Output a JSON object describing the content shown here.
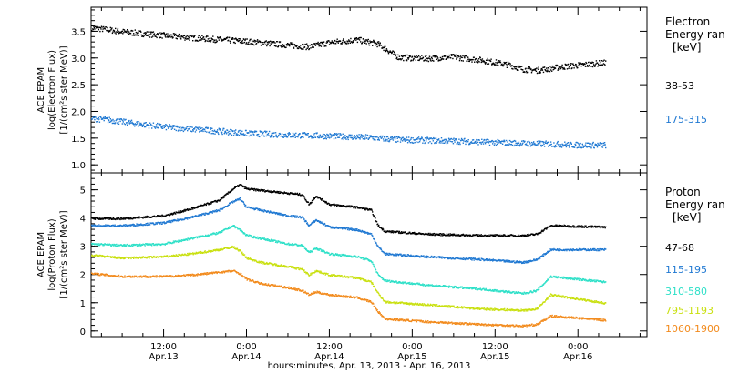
{
  "xlabel": "hours:minutes, Apr. 13, 2013 - Apr. 16, 2013",
  "x_ticks": [
    {
      "time": "12:00",
      "date": "Apr.13",
      "hours": 12
    },
    {
      "time": "0:00",
      "date": "Apr.14",
      "hours": 24
    },
    {
      "time": "12:00",
      "date": "Apr.14",
      "hours": 36
    },
    {
      "time": "0:00",
      "date": "Apr.15",
      "hours": 48
    },
    {
      "time": "12:00",
      "date": "Apr.15",
      "hours": 60
    },
    {
      "time": "0:00",
      "date": "Apr.16",
      "hours": 72
    }
  ],
  "chart_data": [
    {
      "type": "scatter",
      "panel": "electron",
      "ylabel_lines": [
        "ACE EPAM",
        "log(Electron Flux)",
        "[1/(cm²s ster MeV)]"
      ],
      "xlim_hours": [
        1.5,
        82
      ],
      "ylim": [
        0.85,
        3.95
      ],
      "y_ticks": [
        1.0,
        1.5,
        2.0,
        2.5,
        3.0,
        3.5
      ],
      "legend_title": [
        "Electron",
        "Energy ran",
        "[keV]"
      ],
      "series": [
        {
          "name": "38-53",
          "color": "#000000",
          "x_hours": [
            1.5,
            6,
            12,
            18,
            24,
            30,
            33,
            36,
            40,
            43,
            46,
            50,
            54,
            58,
            62,
            64,
            66,
            70,
            74,
            76
          ],
          "y": [
            3.58,
            3.5,
            3.43,
            3.37,
            3.32,
            3.25,
            3.22,
            3.3,
            3.35,
            3.27,
            3.02,
            3.0,
            3.03,
            2.97,
            2.88,
            2.8,
            2.78,
            2.85,
            2.9,
            2.92
          ]
        },
        {
          "name": "175-315",
          "color": "#1f78d2",
          "x_hours": [
            1.5,
            4,
            8,
            12,
            18,
            24,
            30,
            36,
            42,
            46,
            50,
            56,
            62,
            68,
            72,
            76
          ],
          "y": [
            1.88,
            1.85,
            1.78,
            1.72,
            1.66,
            1.6,
            1.57,
            1.55,
            1.52,
            1.48,
            1.47,
            1.45,
            1.42,
            1.4,
            1.38,
            1.38
          ]
        }
      ]
    },
    {
      "type": "line",
      "panel": "proton",
      "ylabel_lines": [
        "ACE EPAM",
        "log(Proton Flux)",
        "[1/(cm²s ster MeV)]"
      ],
      "xlim_hours": [
        1.5,
        82
      ],
      "ylim": [
        -0.2,
        5.6
      ],
      "y_ticks": [
        0,
        1,
        2,
        3,
        4,
        5
      ],
      "legend_title": [
        "Proton",
        "Energy ran",
        "[keV]"
      ],
      "series": [
        {
          "name": "47-68",
          "color": "#000000",
          "x_hours": [
            1.5,
            6,
            12,
            16,
            20,
            22,
            23,
            24,
            26,
            30,
            32,
            33,
            34,
            36,
            40,
            42,
            43,
            44,
            50,
            58,
            64,
            66,
            68,
            76
          ],
          "y": [
            4.0,
            4.0,
            4.1,
            4.35,
            4.65,
            5.05,
            5.2,
            5.05,
            5.0,
            4.9,
            4.85,
            4.5,
            4.8,
            4.5,
            4.4,
            4.3,
            3.75,
            3.55,
            3.45,
            3.4,
            3.4,
            3.45,
            3.75,
            3.7
          ]
        },
        {
          "name": "115-195",
          "color": "#1f78d2",
          "x_hours": [
            1.5,
            6,
            12,
            16,
            20,
            22,
            23,
            24,
            26,
            30,
            32,
            33,
            34,
            36,
            40,
            42,
            43,
            44,
            50,
            58,
            64,
            66,
            68,
            76
          ],
          "y": [
            3.75,
            3.75,
            3.85,
            4.05,
            4.3,
            4.6,
            4.7,
            4.4,
            4.3,
            4.1,
            4.05,
            3.75,
            3.95,
            3.7,
            3.6,
            3.45,
            3.0,
            2.75,
            2.65,
            2.55,
            2.45,
            2.55,
            2.9,
            2.9
          ]
        },
        {
          "name": "310-580",
          "color": "#2ee0c8",
          "x_hours": [
            1.5,
            6,
            12,
            16,
            20,
            22,
            23,
            24,
            26,
            30,
            32,
            33,
            34,
            36,
            40,
            42,
            43,
            44,
            50,
            58,
            64,
            66,
            68,
            76
          ],
          "y": [
            3.1,
            3.05,
            3.1,
            3.3,
            3.5,
            3.75,
            3.6,
            3.4,
            3.3,
            3.1,
            3.05,
            2.8,
            2.95,
            2.75,
            2.65,
            2.5,
            2.0,
            1.8,
            1.65,
            1.5,
            1.35,
            1.45,
            1.95,
            1.75
          ]
        },
        {
          "name": "795-1193",
          "color": "#c9e00f",
          "x_hours": [
            1.5,
            6,
            12,
            16,
            20,
            22,
            23,
            24,
            26,
            30,
            32,
            33,
            34,
            36,
            40,
            42,
            43,
            44,
            50,
            58,
            64,
            66,
            68,
            76
          ],
          "y": [
            2.7,
            2.6,
            2.65,
            2.75,
            2.9,
            3.0,
            2.85,
            2.6,
            2.45,
            2.3,
            2.2,
            2.0,
            2.15,
            2.0,
            1.9,
            1.75,
            1.35,
            1.05,
            0.95,
            0.8,
            0.75,
            0.8,
            1.3,
            1.0
          ]
        },
        {
          "name": "1060-1900",
          "color": "#f28a1c",
          "x_hours": [
            1.5,
            6,
            12,
            16,
            20,
            22,
            23,
            24,
            26,
            30,
            32,
            33,
            34,
            36,
            40,
            42,
            43,
            44,
            50,
            58,
            64,
            66,
            68,
            76
          ],
          "y": [
            2.05,
            1.95,
            1.95,
            2.0,
            2.1,
            2.15,
            2.05,
            1.85,
            1.7,
            1.55,
            1.45,
            1.3,
            1.4,
            1.3,
            1.2,
            1.05,
            0.7,
            0.45,
            0.35,
            0.25,
            0.2,
            0.25,
            0.55,
            0.4
          ]
        }
      ]
    }
  ]
}
